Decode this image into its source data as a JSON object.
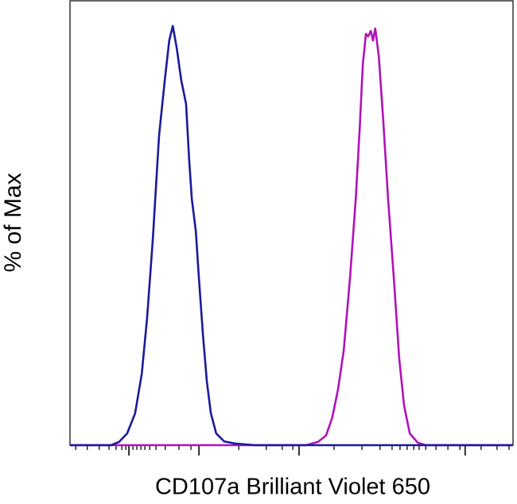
{
  "chart_data": {
    "type": "line",
    "ylabel": "% of Max",
    "xlabel": "CD107a Brilliant Violet 650",
    "xlim": [
      0,
      100
    ],
    "ylim": [
      0,
      106
    ],
    "xticks": [
      13.3,
      29.1,
      51.7,
      89.2
    ],
    "xminorticks": [
      1.3,
      3.9,
      6.6,
      8.8,
      10.4,
      11.7,
      12.6,
      14.2,
      15.1,
      16.0,
      16.9,
      18.0,
      19.4,
      21.5,
      24.6,
      27.3,
      38.1,
      44.3,
      47.9,
      50.3,
      59.6,
      65.9,
      70.0,
      72.7,
      74.5,
      76.1,
      77.6,
      78.8,
      80.3,
      82.6,
      85.3,
      88.0,
      92.8,
      96.4,
      99.1
    ],
    "series": [
      {
        "color": "#b012ba",
        "x": [
          0,
          53.3,
          56.0,
          57.8,
          59.2,
          60.5,
          61.8,
          63.2,
          64.5,
          65.4,
          66.1,
          66.8,
          67.3,
          67.9,
          68.4,
          68.9,
          69.7,
          70.7,
          71.8,
          73.1,
          74.3,
          75.4,
          76.7,
          78.5,
          80.3,
          100
        ],
        "values": [
          0,
          0,
          0.8,
          2.3,
          6.6,
          13.3,
          22.7,
          39.8,
          58.7,
          75.7,
          90.9,
          98.1,
          97.5,
          98.8,
          96.5,
          99.4,
          92.8,
          77.6,
          58.7,
          39.8,
          20.8,
          9.5,
          2.8,
          0.6,
          0,
          0
        ]
      },
      {
        "color": "#1a1a9c",
        "x": [
          0,
          9.3,
          11.1,
          12.9,
          14.7,
          16.2,
          17.4,
          18.7,
          20.1,
          21.4,
          22.4,
          23.2,
          24.1,
          25.1,
          26.2,
          26.9,
          27.5,
          28.4,
          29.1,
          30.0,
          30.9,
          31.8,
          33.0,
          34.8,
          37.2,
          41.7,
          100
        ],
        "values": [
          0,
          0,
          0.8,
          2.8,
          7.6,
          17.0,
          30.3,
          49.2,
          73.8,
          87.1,
          96.5,
          100,
          94.7,
          87.1,
          81.4,
          68.1,
          58.7,
          51.1,
          39.8,
          26.5,
          15.1,
          7.6,
          2.8,
          0.9,
          0.4,
          0,
          0
        ]
      }
    ]
  }
}
